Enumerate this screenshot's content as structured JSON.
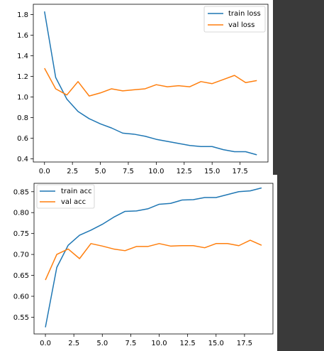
{
  "colors": {
    "blue": "#1f77b4",
    "orange": "#ff7f0e",
    "background": "#383838"
  },
  "chart_data": [
    {
      "type": "line",
      "title": "",
      "xlabel": "",
      "ylabel": "",
      "grid": false,
      "legend_position": "top-right",
      "xlim": [
        -1,
        20
      ],
      "ylim": [
        0.37,
        1.9
      ],
      "xticks": [
        0.0,
        2.5,
        5.0,
        7.5,
        10.0,
        12.5,
        15.0,
        17.5
      ],
      "xtick_labels": [
        "0.0",
        "2.5",
        "5.0",
        "7.5",
        "10.0",
        "12.5",
        "15.0",
        "17.5"
      ],
      "yticks": [
        0.4,
        0.6,
        0.8,
        1.0,
        1.2,
        1.4,
        1.6,
        1.8
      ],
      "ytick_labels": [
        "0.4",
        "0.6",
        "0.8",
        "1.0",
        "1.2",
        "1.4",
        "1.6",
        "1.8"
      ],
      "x": [
        0,
        1,
        2,
        3,
        4,
        5,
        6,
        7,
        8,
        9,
        10,
        11,
        12,
        13,
        14,
        15,
        16,
        17,
        18,
        19
      ],
      "series": [
        {
          "name": "train loss",
          "color": "#1f77b4",
          "values": [
            1.83,
            1.19,
            0.98,
            0.86,
            0.79,
            0.74,
            0.7,
            0.65,
            0.64,
            0.62,
            0.59,
            0.57,
            0.55,
            0.53,
            0.52,
            0.52,
            0.49,
            0.47,
            0.47,
            0.44
          ]
        },
        {
          "name": "val loss",
          "color": "#ff7f0e",
          "values": [
            1.28,
            1.08,
            1.02,
            1.15,
            1.01,
            1.04,
            1.08,
            1.06,
            1.07,
            1.08,
            1.12,
            1.1,
            1.11,
            1.1,
            1.15,
            1.13,
            1.17,
            1.21,
            1.14,
            1.16
          ]
        }
      ]
    },
    {
      "type": "line",
      "title": "",
      "xlabel": "",
      "ylabel": "",
      "grid": false,
      "legend_position": "top-left",
      "xlim": [
        -1,
        20
      ],
      "ylim": [
        0.51,
        0.87
      ],
      "xticks": [
        0.0,
        2.5,
        5.0,
        7.5,
        10.0,
        12.5,
        15.0,
        17.5
      ],
      "xtick_labels": [
        "0.0",
        "2.5",
        "5.0",
        "7.5",
        "10.0",
        "12.5",
        "15.0",
        "17.5"
      ],
      "yticks": [
        0.55,
        0.6,
        0.65,
        0.7,
        0.75,
        0.8,
        0.85
      ],
      "ytick_labels": [
        "0.55",
        "0.60",
        "0.65",
        "0.70",
        "0.75",
        "0.80",
        "0.85"
      ],
      "x": [
        0,
        1,
        2,
        3,
        4,
        5,
        6,
        7,
        8,
        9,
        10,
        11,
        12,
        13,
        14,
        15,
        16,
        17,
        18,
        19
      ],
      "series": [
        {
          "name": "train acc",
          "color": "#1f77b4",
          "values": [
            0.526,
            0.669,
            0.722,
            0.746,
            0.758,
            0.772,
            0.789,
            0.803,
            0.804,
            0.809,
            0.82,
            0.822,
            0.83,
            0.831,
            0.836,
            0.836,
            0.843,
            0.85,
            0.852,
            0.859
          ]
        },
        {
          "name": "val acc",
          "color": "#ff7f0e",
          "values": [
            0.639,
            0.7,
            0.713,
            0.69,
            0.726,
            0.72,
            0.713,
            0.709,
            0.719,
            0.719,
            0.726,
            0.72,
            0.721,
            0.721,
            0.716,
            0.726,
            0.726,
            0.721,
            0.734,
            0.722
          ]
        }
      ]
    }
  ]
}
